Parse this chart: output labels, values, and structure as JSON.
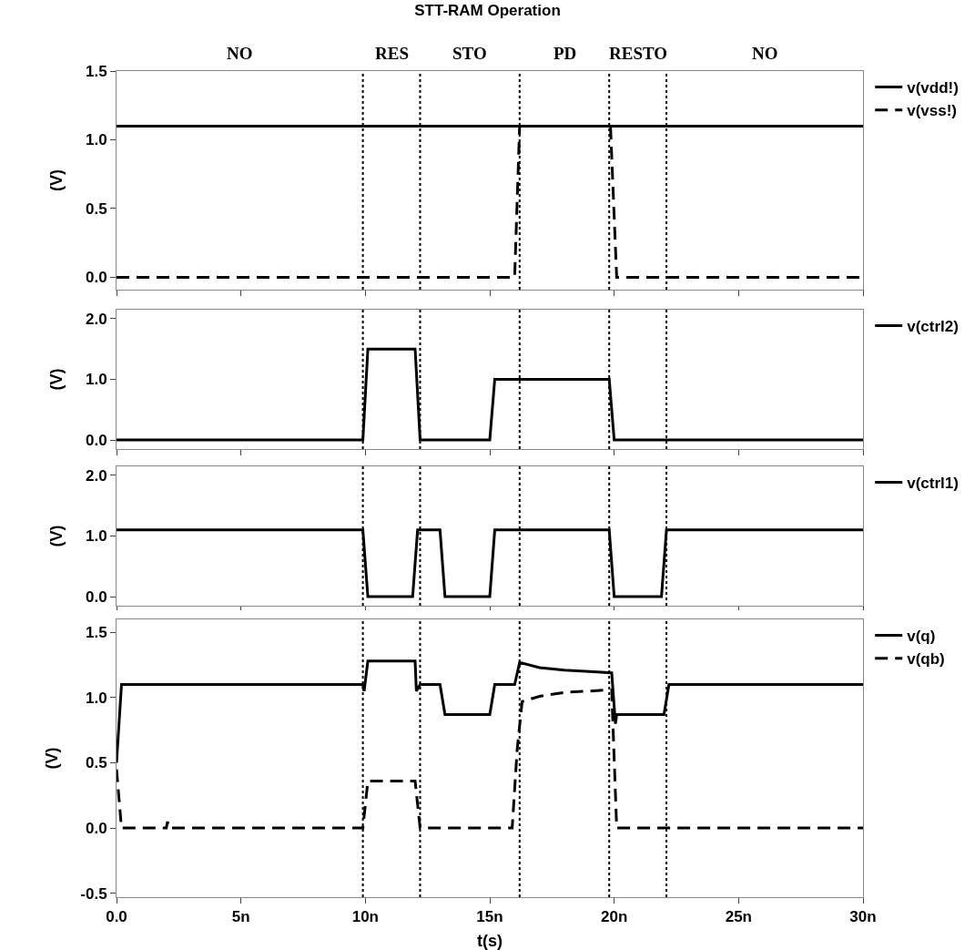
{
  "chart_data": [
    {
      "type": "line",
      "title": "STT-RAM Operation",
      "ylabel": "(V)",
      "annotations": [
        "NO",
        "RES",
        "STO",
        "PD",
        "RESTO",
        "NO"
      ],
      "series": [
        {
          "name": "v(vdd!)",
          "color": "#000000",
          "line_style": "solid",
          "x": [
            0,
            30
          ],
          "values": [
            1.1,
            1.1
          ]
        },
        {
          "name": "v(vss!)",
          "color": "#000000",
          "line_style": "dashed",
          "x": [
            0,
            16.0,
            16.2,
            19.85,
            20.1,
            30
          ],
          "values": [
            0,
            0,
            1.1,
            1.1,
            0,
            0
          ]
        }
      ],
      "xlim": [
        0,
        30
      ],
      "ylim": [
        -0.09,
        1.5
      ],
      "yticks": [
        {
          "value": 0,
          "label": "0.0"
        },
        {
          "value": 0.5,
          "label": "0.5"
        },
        {
          "value": 1,
          "label": "1.0"
        },
        {
          "value": 1.5,
          "label": "1.5"
        }
      ],
      "xticks": [
        {
          "value": 0,
          "label": null
        },
        {
          "value": 5,
          "label": null
        },
        {
          "value": 10,
          "label": null
        },
        {
          "value": 15,
          "label": null
        },
        {
          "value": 20,
          "label": null
        },
        {
          "value": 25,
          "label": null
        },
        {
          "value": 30,
          "label": null
        }
      ],
      "tick_labels": "y",
      "legend": "right",
      "grid": false,
      "marker": "none",
      "ref_lines": [
        {
          "axis": "x",
          "value": 9.9,
          "line_style": "dotted"
        },
        {
          "axis": "x",
          "value": 12.2,
          "line_style": "dotted"
        },
        {
          "axis": "x",
          "value": 16.2,
          "line_style": "dotted"
        },
        {
          "axis": "x",
          "value": 19.8,
          "line_style": "dotted"
        },
        {
          "axis": "x",
          "value": 22.1,
          "line_style": "dotted"
        }
      ]
    },
    {
      "type": "line",
      "ylabel": "(V)",
      "series": [
        {
          "name": "v(ctrl2)",
          "color": "#000000",
          "line_style": "solid",
          "x": [
            0,
            9.9,
            10.1,
            12.0,
            12.2,
            15.0,
            15.2,
            19.8,
            20.0,
            30
          ],
          "values": [
            0,
            0,
            1.5,
            1.5,
            0,
            0,
            1.0,
            1.0,
            0,
            0
          ]
        }
      ],
      "xlim": [
        0,
        30
      ],
      "ylim": [
        -0.15,
        2.15
      ],
      "yticks": [
        {
          "value": 0,
          "label": "0.0"
        },
        {
          "value": 1,
          "label": "1.0"
        },
        {
          "value": 2,
          "label": "2.0"
        }
      ],
      "xticks": [
        {
          "value": 0,
          "label": null
        },
        {
          "value": 5,
          "label": null
        },
        {
          "value": 10,
          "label": null
        },
        {
          "value": 15,
          "label": null
        },
        {
          "value": 20,
          "label": null
        },
        {
          "value": 25,
          "label": null
        },
        {
          "value": 30,
          "label": null
        }
      ],
      "tick_labels": "y",
      "legend": "right",
      "grid": false,
      "marker": "none",
      "ref_lines": [
        {
          "axis": "x",
          "value": 9.9,
          "line_style": "dotted"
        },
        {
          "axis": "x",
          "value": 12.2,
          "line_style": "dotted"
        },
        {
          "axis": "x",
          "value": 16.2,
          "line_style": "dotted"
        },
        {
          "axis": "x",
          "value": 19.8,
          "line_style": "dotted"
        },
        {
          "axis": "x",
          "value": 22.1,
          "line_style": "dotted"
        }
      ]
    },
    {
      "type": "line",
      "ylabel": "(V)",
      "series": [
        {
          "name": "v(ctrl1)",
          "color": "#000000",
          "line_style": "solid",
          "x": [
            0,
            9.9,
            10.1,
            11.9,
            12.1,
            13.0,
            13.2,
            15.0,
            15.2,
            19.8,
            20.0,
            21.9,
            22.1,
            30
          ],
          "values": [
            1.1,
            1.1,
            0,
            0,
            1.1,
            1.1,
            0,
            0,
            1.1,
            1.1,
            0,
            0,
            1.1,
            1.1
          ]
        }
      ],
      "xlim": [
        0,
        30
      ],
      "ylim": [
        -0.15,
        2.15
      ],
      "yticks": [
        {
          "value": 0,
          "label": "0.0"
        },
        {
          "value": 1,
          "label": "1.0"
        },
        {
          "value": 2,
          "label": "2.0"
        }
      ],
      "xticks": [
        {
          "value": 0,
          "label": null
        },
        {
          "value": 5,
          "label": null
        },
        {
          "value": 10,
          "label": null
        },
        {
          "value": 15,
          "label": null
        },
        {
          "value": 20,
          "label": null
        },
        {
          "value": 25,
          "label": null
        },
        {
          "value": 30,
          "label": null
        }
      ],
      "tick_labels": "y",
      "legend": "right",
      "grid": false,
      "marker": "none",
      "ref_lines": [
        {
          "axis": "x",
          "value": 9.9,
          "line_style": "dotted"
        },
        {
          "axis": "x",
          "value": 12.2,
          "line_style": "dotted"
        },
        {
          "axis": "x",
          "value": 16.2,
          "line_style": "dotted"
        },
        {
          "axis": "x",
          "value": 19.8,
          "line_style": "dotted"
        },
        {
          "axis": "x",
          "value": 22.1,
          "line_style": "dotted"
        }
      ]
    },
    {
      "type": "line",
      "xlabel": "t(s)",
      "ylabel": "(V)",
      "series": [
        {
          "name": "v(q)",
          "color": "#000000",
          "line_style": "solid",
          "x": [
            0,
            0.2,
            9.9,
            9.95,
            10.1,
            12.0,
            12.05,
            12.2,
            13.0,
            13.2,
            15.0,
            15.2,
            16.0,
            16.2,
            17.0,
            18.0,
            19.0,
            19.9,
            20.05,
            20.1,
            22.0,
            22.2,
            30
          ],
          "values": [
            0.5,
            1.1,
            1.1,
            1.05,
            1.28,
            1.28,
            1.05,
            1.1,
            1.1,
            0.87,
            0.87,
            1.1,
            1.1,
            1.27,
            1.23,
            1.21,
            1.2,
            1.19,
            0.8,
            0.87,
            0.87,
            1.1,
            1.1
          ]
        },
        {
          "name": "v(qb)",
          "color": "#000000",
          "line_style": "dashed",
          "x": [
            0,
            0.2,
            2.0,
            2.05,
            2.1,
            9.9,
            10.1,
            12.0,
            12.2,
            15.9,
            16.1,
            16.3,
            17.0,
            18.0,
            19.0,
            19.9,
            20.1,
            30
          ],
          "values": [
            0.45,
            0,
            0,
            0.05,
            0,
            0,
            0.36,
            0.36,
            0,
            0,
            0.6,
            0.97,
            1.01,
            1.04,
            1.05,
            1.06,
            0,
            0
          ]
        }
      ],
      "xlim": [
        0,
        30
      ],
      "ylim": [
        -0.53,
        1.6
      ],
      "yticks": [
        {
          "value": -0.5,
          "label": "-0.5"
        },
        {
          "value": 0,
          "label": "0.0"
        },
        {
          "value": 0.5,
          "label": "0.5"
        },
        {
          "value": 1,
          "label": "1.0"
        },
        {
          "value": 1.5,
          "label": "1.5"
        }
      ],
      "xticks": [
        {
          "value": 0,
          "label": "0.0"
        },
        {
          "value": 5,
          "label": "5n"
        },
        {
          "value": 10,
          "label": "10n"
        },
        {
          "value": 15,
          "label": "15n"
        },
        {
          "value": 20,
          "label": "20n"
        },
        {
          "value": 25,
          "label": "25n"
        },
        {
          "value": 30,
          "label": "30n"
        }
      ],
      "legend": "right",
      "grid": false,
      "marker": "none",
      "ref_lines": [
        {
          "axis": "x",
          "value": 9.9,
          "line_style": "dotted"
        },
        {
          "axis": "x",
          "value": 12.2,
          "line_style": "dotted"
        },
        {
          "axis": "x",
          "value": 16.2,
          "line_style": "dotted"
        },
        {
          "axis": "x",
          "value": 19.8,
          "line_style": "dotted"
        },
        {
          "axis": "x",
          "value": 22.1,
          "line_style": "dotted"
        }
      ]
    }
  ]
}
